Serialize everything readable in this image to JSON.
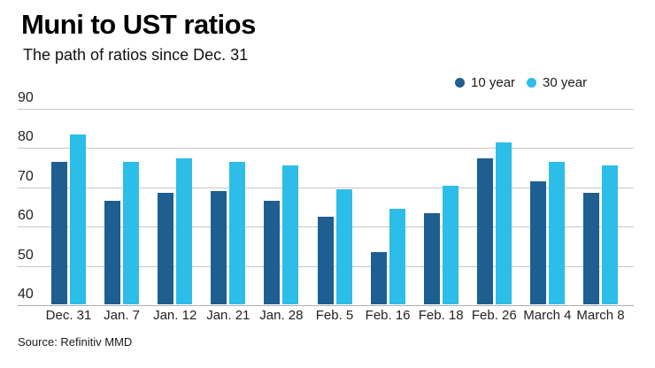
{
  "header": {
    "title": "Muni to UST ratios",
    "subtitle": "The path of ratios since Dec. 31"
  },
  "source": "Source: Refinitiv MMD",
  "colors": {
    "series_10_year": "#1E5E91",
    "series_30_year": "#2CBDE8",
    "gridline": "#c6c6c6",
    "baseline": "#aeaeae"
  },
  "chart_data": {
    "type": "bar",
    "title": "Muni to UST ratios",
    "subtitle": "The path of ratios since Dec. 31",
    "categories": [
      "Dec. 31",
      "Jan. 7",
      "Jan. 12",
      "Jan. 21",
      "Jan. 28",
      "Feb. 5",
      "Feb. 16",
      "Feb. 18",
      "Feb. 26",
      "March 4",
      "March 8"
    ],
    "series": [
      {
        "name": "10 year",
        "color": "#1E5E91",
        "values": [
          76.5,
          66.5,
          68.5,
          69,
          66.5,
          62.5,
          53.5,
          63.5,
          77.5,
          71.5,
          68.5
        ]
      },
      {
        "name": "30 year",
        "color": "#2CBDE8",
        "values": [
          83.5,
          76.5,
          77.5,
          76.5,
          75.5,
          69.5,
          64.5,
          70.5,
          81.5,
          76.5,
          75.5
        ]
      }
    ],
    "xlabel": "",
    "ylabel": "",
    "ylim": [
      40,
      90
    ],
    "yticks": [
      40,
      50,
      60,
      70,
      80,
      90
    ],
    "grid": true,
    "legend_position": "top-right",
    "source_note": "Source: Refinitiv MMD"
  }
}
